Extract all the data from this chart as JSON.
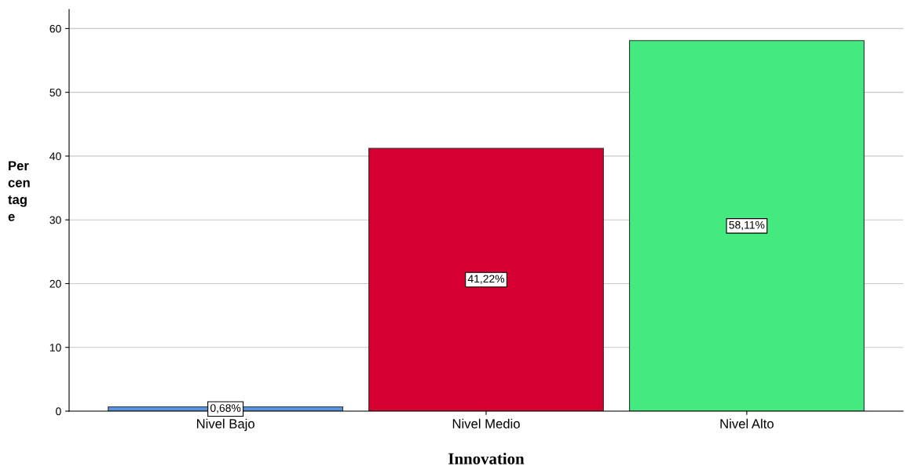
{
  "chart_data": {
    "type": "bar",
    "xlabel": "Innovation",
    "ylabel": "Per\ncen\ntag\ne",
    "categories": [
      "Nivel Bajo",
      "Nivel Medio",
      "Nivel Alto"
    ],
    "values": [
      0.68,
      41.22,
      58.11
    ],
    "colors": [
      "#5b93e3",
      "#d40031",
      "#44e97f"
    ],
    "value_labels": [
      "0,68%",
      "41,22%",
      "58,11%"
    ],
    "ylim": [
      0,
      63
    ],
    "yticks": [
      0,
      10,
      20,
      30,
      40,
      50,
      60
    ],
    "grid": "y",
    "legend": false
  }
}
